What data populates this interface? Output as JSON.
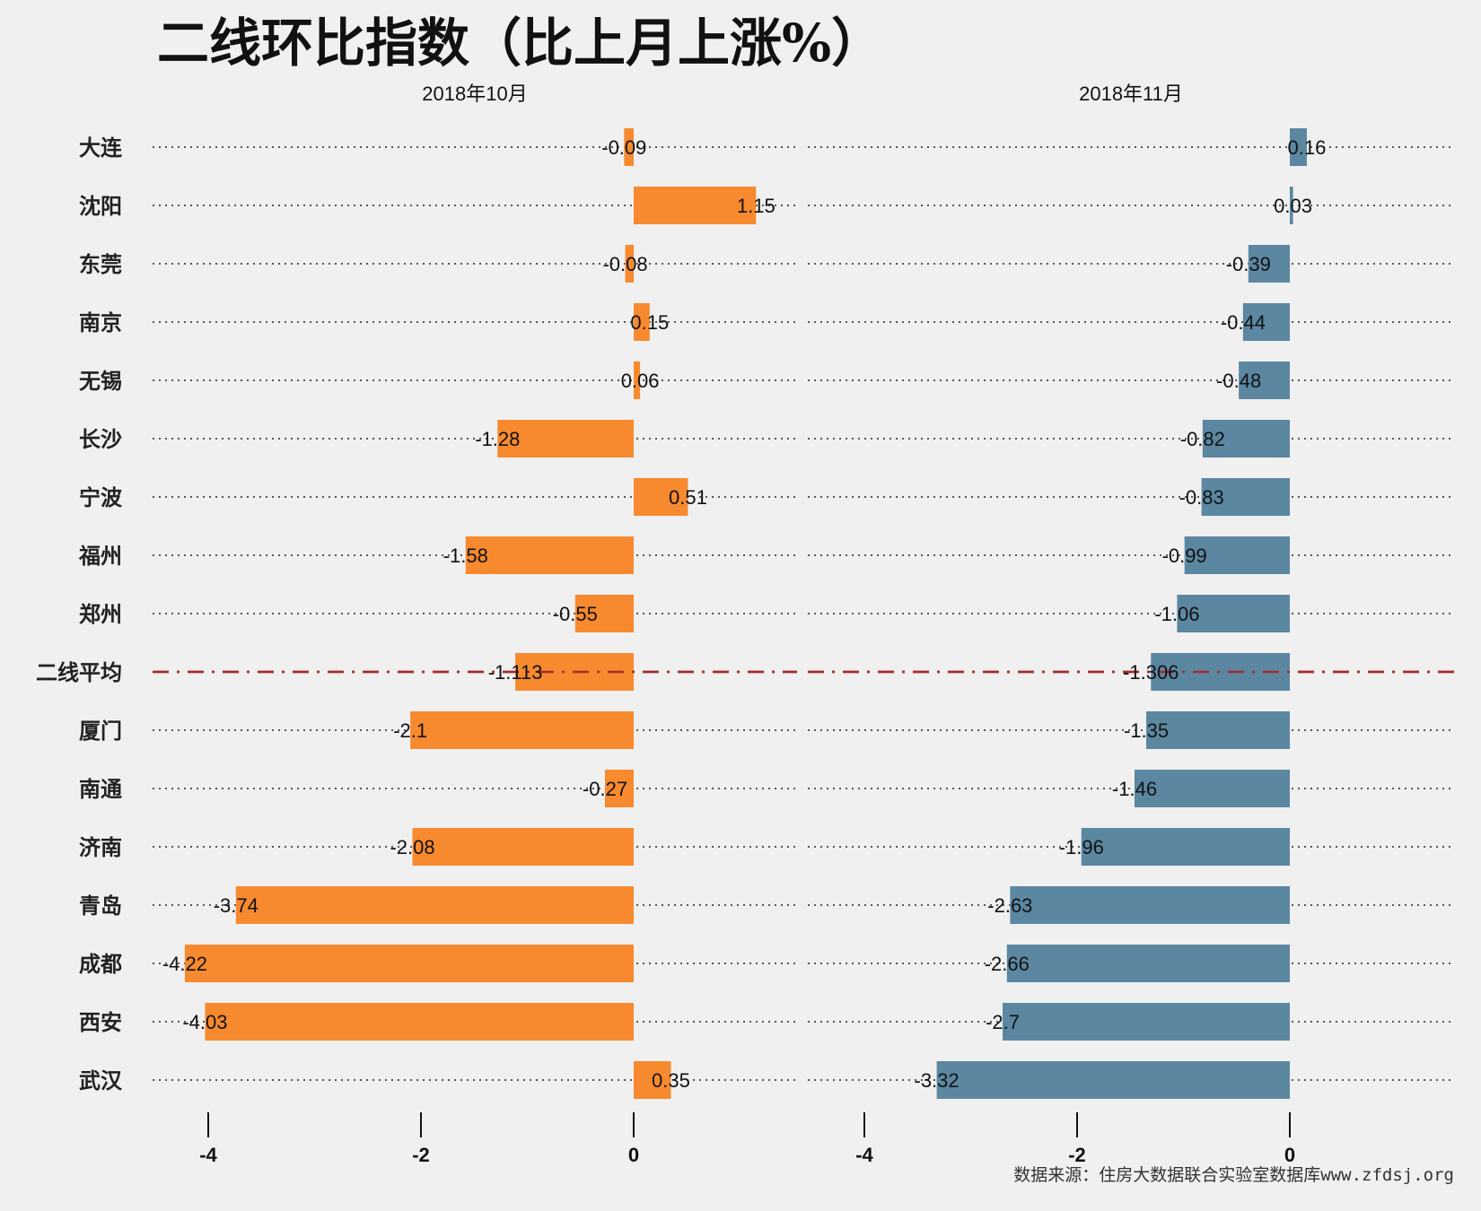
{
  "chart_data": {
    "type": "bar",
    "orientation": "horizontal",
    "title": "二线环比指数（比上月上涨%）",
    "source": "数据来源：住房大数据联合实验室数据库www.zfdsj.org",
    "categories": [
      "大连",
      "沈阳",
      "东莞",
      "南京",
      "无锡",
      "长沙",
      "宁波",
      "福州",
      "郑州",
      "二线平均",
      "厦门",
      "南通",
      "济南",
      "青岛",
      "成都",
      "西安",
      "武汉"
    ],
    "average_category": "二线平均",
    "grid": true,
    "panels": [
      {
        "name": "2018年10月",
        "color": "#f78a2e",
        "values": [
          -0.09,
          1.15,
          -0.08,
          0.15,
          0.06,
          -1.28,
          0.51,
          -1.58,
          -0.55,
          -1.113,
          -2.1,
          -0.27,
          -2.08,
          -3.74,
          -4.22,
          -4.03,
          0.35
        ],
        "xlim": [
          -4.5,
          1.5
        ],
        "ticks": [
          -4,
          -2,
          0
        ]
      },
      {
        "name": "2018年11月",
        "color": "#5b87a1",
        "values": [
          0.16,
          0.03,
          -0.39,
          -0.44,
          -0.48,
          -0.82,
          -0.83,
          -0.99,
          -1.06,
          -1.306,
          -1.35,
          -1.46,
          -1.96,
          -2.63,
          -2.66,
          -2.7,
          -3.32
        ],
        "xlim": [
          -4.5,
          1.5
        ],
        "ticks": [
          -4,
          -2,
          0
        ]
      }
    ],
    "average_line_color": "#a52a2a"
  }
}
